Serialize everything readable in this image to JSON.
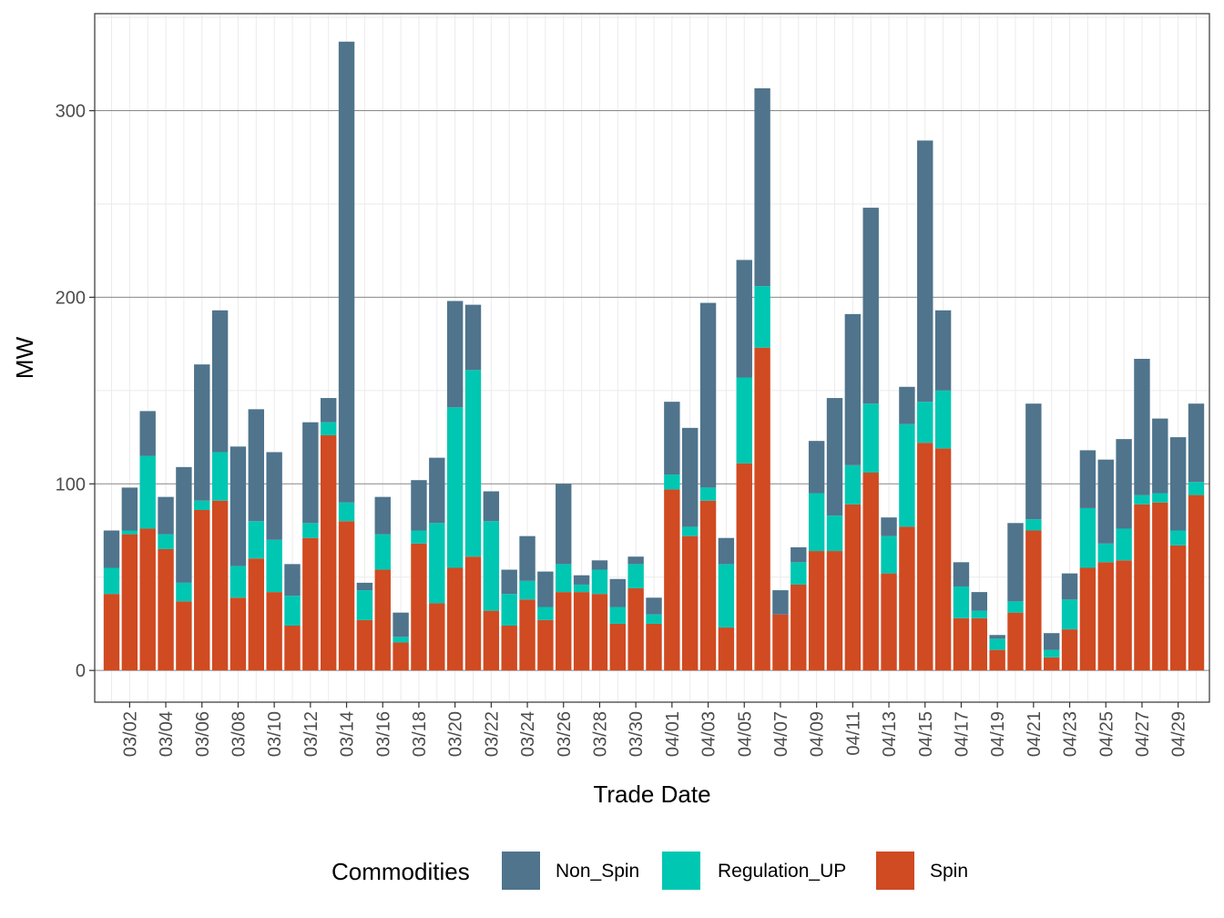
{
  "chart_data": {
    "type": "bar",
    "stacked": true,
    "title": "",
    "xlabel": "Trade Date",
    "ylabel": "MW",
    "ylim": [
      -17,
      352
    ],
    "yticks": [
      0,
      100,
      200,
      300
    ],
    "ytick_labels": [
      "0",
      "100",
      "200",
      "300"
    ],
    "x_tick_labels": [
      "03/02",
      "03/04",
      "03/06",
      "03/08",
      "03/10",
      "03/12",
      "03/14",
      "03/16",
      "03/18",
      "03/20",
      "03/22",
      "03/24",
      "03/26",
      "03/28",
      "03/30",
      "04/01",
      "04/03",
      "04/05",
      "04/07",
      "04/09",
      "04/11",
      "04/13",
      "04/15",
      "04/17",
      "04/19",
      "04/21",
      "04/23",
      "04/25",
      "04/27",
      "04/29"
    ],
    "categories": [
      "03/01",
      "03/02",
      "03/03",
      "03/04",
      "03/05",
      "03/06",
      "03/07",
      "03/08",
      "03/09",
      "03/10",
      "03/11",
      "03/12",
      "03/13",
      "03/14",
      "03/15",
      "03/16",
      "03/17",
      "03/18",
      "03/19",
      "03/20",
      "03/21",
      "03/22",
      "03/23",
      "03/24",
      "03/25",
      "03/26",
      "03/27",
      "03/28",
      "03/29",
      "03/30",
      "03/31",
      "04/01",
      "04/02",
      "04/03",
      "04/04",
      "04/05",
      "04/06",
      "04/07",
      "04/08",
      "04/09",
      "04/10",
      "04/11",
      "04/12",
      "04/13",
      "04/14",
      "04/15",
      "04/16",
      "04/17",
      "04/18",
      "04/19",
      "04/20",
      "04/21",
      "04/22",
      "04/23",
      "04/24",
      "04/25",
      "04/26",
      "04/27",
      "04/28",
      "04/29",
      "04/30"
    ],
    "series": [
      {
        "name": "Spin",
        "color": "#D04A22",
        "values": [
          41,
          73,
          76,
          65,
          37,
          86,
          91,
          39,
          60,
          42,
          24,
          71,
          126,
          80,
          27,
          54,
          15,
          68,
          36,
          55,
          61,
          32,
          24,
          38,
          27,
          42,
          42,
          41,
          25,
          44,
          25,
          97,
          72,
          91,
          23,
          111,
          173,
          30,
          46,
          64,
          64,
          89,
          106,
          52,
          77,
          122,
          119,
          28,
          28,
          11,
          31,
          75,
          7,
          22,
          55,
          58,
          59,
          89,
          90,
          67,
          94
        ]
      },
      {
        "name": "Regulation_UP",
        "color": "#00C7B2",
        "values": [
          14,
          2,
          39,
          8,
          10,
          5,
          26,
          17,
          20,
          28,
          16,
          8,
          7,
          10,
          16,
          19,
          3,
          7,
          43,
          86,
          100,
          48,
          17,
          10,
          7,
          15,
          4,
          13,
          9,
          13,
          5,
          8,
          5,
          7,
          34,
          46,
          33,
          0,
          12,
          31,
          19,
          21,
          37,
          20,
          55,
          22,
          31,
          17,
          4,
          6,
          6,
          6,
          4,
          16,
          32,
          10,
          17,
          5,
          5,
          8,
          7
        ]
      },
      {
        "name": "Non_Spin",
        "color": "#4F748C",
        "values": [
          20,
          23,
          24,
          20,
          62,
          73,
          76,
          64,
          60,
          47,
          17,
          54,
          13,
          247,
          4,
          20,
          13,
          27,
          35,
          57,
          35,
          16,
          13,
          24,
          19,
          43,
          5,
          5,
          15,
          4,
          9,
          39,
          53,
          99,
          14,
          63,
          106,
          13,
          8,
          28,
          63,
          81,
          105,
          10,
          20,
          140,
          43,
          13,
          10,
          2,
          42,
          62,
          9,
          14,
          31,
          45,
          48,
          73,
          40,
          50,
          42
        ]
      }
    ]
  },
  "legend": {
    "title": "Commodities",
    "items": [
      {
        "label": "Non_Spin",
        "color": "#4F748C"
      },
      {
        "label": "Regulation_UP",
        "color": "#00C7B2"
      },
      {
        "label": "Spin",
        "color": "#D04A22"
      }
    ]
  }
}
